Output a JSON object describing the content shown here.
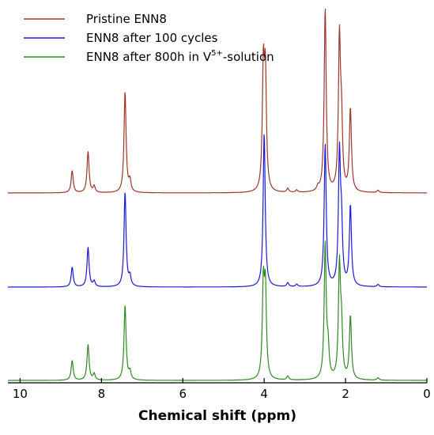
{
  "chart_data": {
    "type": "line",
    "title": "",
    "xlabel": "Chemical shift (ppm)",
    "ylabel": "",
    "xlim": [
      10.3,
      0
    ],
    "x_reversed": true,
    "grid": false,
    "legend_position": "top-left",
    "xticks": [
      10,
      8,
      6,
      4,
      2,
      0
    ],
    "legend": [
      {
        "name": "Pristine ENN8",
        "color": "#a0362a"
      },
      {
        "name": "ENN8 after 100 cycles",
        "color": "#1a1adc"
      },
      {
        "name_main": "ENN8 after 800h in V",
        "name_sup": "5+",
        "name_tail": "-solution",
        "color": "#2e8b22"
      }
    ],
    "series": [
      {
        "color": "#a0362a",
        "peaks": [
          {
            "x": 8.72,
            "h": 28
          },
          {
            "x": 8.33,
            "h": 52
          },
          {
            "x": 8.18,
            "h": 8
          },
          {
            "x": 7.42,
            "h": 128
          },
          {
            "x": 7.3,
            "h": 14
          },
          {
            "x": 4.02,
            "h": 150
          },
          {
            "x": 3.97,
            "h": 140
          },
          {
            "x": 3.42,
            "h": 5
          },
          {
            "x": 3.2,
            "h": 3
          },
          {
            "x": 2.68,
            "h": 5
          },
          {
            "x": 2.5,
            "h": 232
          },
          {
            "x": 2.15,
            "h": 188
          },
          {
            "x": 2.1,
            "h": 80
          },
          {
            "x": 1.88,
            "h": 105
          },
          {
            "x": 1.2,
            "h": 3
          }
        ]
      },
      {
        "color": "#1a1adc",
        "peaks": [
          {
            "x": 8.72,
            "h": 25
          },
          {
            "x": 8.33,
            "h": 50
          },
          {
            "x": 8.18,
            "h": 7
          },
          {
            "x": 7.42,
            "h": 120
          },
          {
            "x": 7.3,
            "h": 12
          },
          {
            "x": 4.0,
            "h": 195
          },
          {
            "x": 3.42,
            "h": 5
          },
          {
            "x": 3.2,
            "h": 3
          },
          {
            "x": 2.5,
            "h": 180
          },
          {
            "x": 2.15,
            "h": 162
          },
          {
            "x": 2.1,
            "h": 70
          },
          {
            "x": 1.88,
            "h": 102
          },
          {
            "x": 1.2,
            "h": 3
          }
        ]
      },
      {
        "color": "#2e8b22",
        "peaks": [
          {
            "x": 8.72,
            "h": 25
          },
          {
            "x": 8.33,
            "h": 45
          },
          {
            "x": 8.18,
            "h": 8
          },
          {
            "x": 7.42,
            "h": 95
          },
          {
            "x": 7.3,
            "h": 10
          },
          {
            "x": 4.02,
            "h": 115
          },
          {
            "x": 3.97,
            "h": 108
          },
          {
            "x": 3.42,
            "h": 5
          },
          {
            "x": 2.5,
            "h": 170
          },
          {
            "x": 2.43,
            "h": 35
          },
          {
            "x": 2.15,
            "h": 140
          },
          {
            "x": 2.1,
            "h": 60
          },
          {
            "x": 1.88,
            "h": 80
          },
          {
            "x": 1.2,
            "h": 3
          }
        ]
      }
    ]
  }
}
